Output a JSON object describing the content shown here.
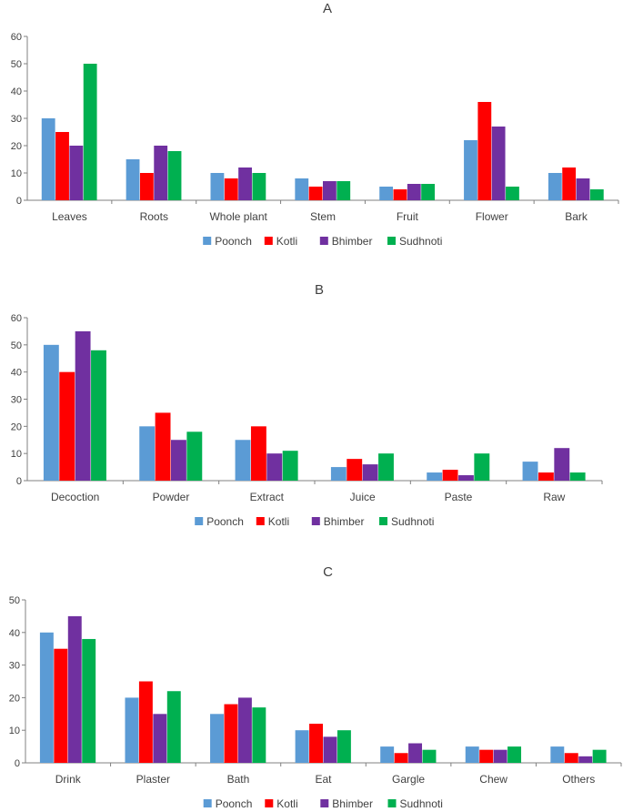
{
  "colors": {
    "Poonch": "#5b9bd5",
    "Kotli": "#ff0000",
    "Bhimber": "#7030a0",
    "Sudhnoti": "#00b050",
    "axis": "#808080",
    "text": "#404040"
  },
  "chart_data": [
    {
      "type": "bar",
      "title": "A",
      "xlabel": "",
      "ylabel": "",
      "ylim": [
        0,
        60
      ],
      "yticks": [
        0,
        10,
        20,
        30,
        40,
        50,
        60
      ],
      "grid": false,
      "legend_position": "bottom",
      "categories": [
        "Leaves",
        "Roots",
        "Whole plant",
        "Stem",
        "Fruit",
        "Flower",
        "Bark"
      ],
      "series": [
        {
          "name": "Poonch",
          "values": [
            30,
            15,
            10,
            8,
            5,
            22,
            10
          ]
        },
        {
          "name": "Kotli",
          "values": [
            25,
            10,
            8,
            5,
            4,
            36,
            12
          ]
        },
        {
          "name": "Bhimber",
          "values": [
            20,
            20,
            12,
            7,
            6,
            27,
            8
          ]
        },
        {
          "name": "Sudhnoti",
          "values": [
            50,
            18,
            10,
            7,
            6,
            5,
            4
          ]
        }
      ]
    },
    {
      "type": "bar",
      "title": "B",
      "xlabel": "",
      "ylabel": "",
      "ylim": [
        0,
        60
      ],
      "yticks": [
        0,
        10,
        20,
        30,
        40,
        50,
        60
      ],
      "grid": false,
      "legend_position": "bottom",
      "categories": [
        "Decoction",
        "Powder",
        "Extract",
        "Juice",
        "Paste",
        "Raw"
      ],
      "series": [
        {
          "name": "Poonch",
          "values": [
            50,
            20,
            15,
            5,
            3,
            7
          ]
        },
        {
          "name": "Kotli",
          "values": [
            40,
            25,
            20,
            8,
            4,
            3
          ]
        },
        {
          "name": "Bhimber",
          "values": [
            55,
            15,
            10,
            6,
            2,
            12
          ]
        },
        {
          "name": "Sudhnoti",
          "values": [
            48,
            18,
            11,
            10,
            10,
            3
          ]
        }
      ]
    },
    {
      "type": "bar",
      "title": "C",
      "xlabel": "",
      "ylabel": "",
      "ylim": [
        0,
        50
      ],
      "yticks": [
        0,
        10,
        20,
        30,
        40,
        50
      ],
      "grid": false,
      "legend_position": "bottom",
      "categories": [
        "Drink",
        "Plaster",
        "Bath",
        "Eat",
        "Gargle",
        "Chew",
        "Others"
      ],
      "series": [
        {
          "name": "Poonch",
          "values": [
            40,
            20,
            15,
            10,
            5,
            5,
            5
          ]
        },
        {
          "name": "Kotli",
          "values": [
            35,
            25,
            18,
            12,
            3,
            4,
            3
          ]
        },
        {
          "name": "Bhimber",
          "values": [
            45,
            15,
            20,
            8,
            6,
            4,
            2
          ]
        },
        {
          "name": "Sudhnoti",
          "values": [
            38,
            22,
            17,
            10,
            4,
            5,
            4
          ]
        }
      ]
    }
  ]
}
